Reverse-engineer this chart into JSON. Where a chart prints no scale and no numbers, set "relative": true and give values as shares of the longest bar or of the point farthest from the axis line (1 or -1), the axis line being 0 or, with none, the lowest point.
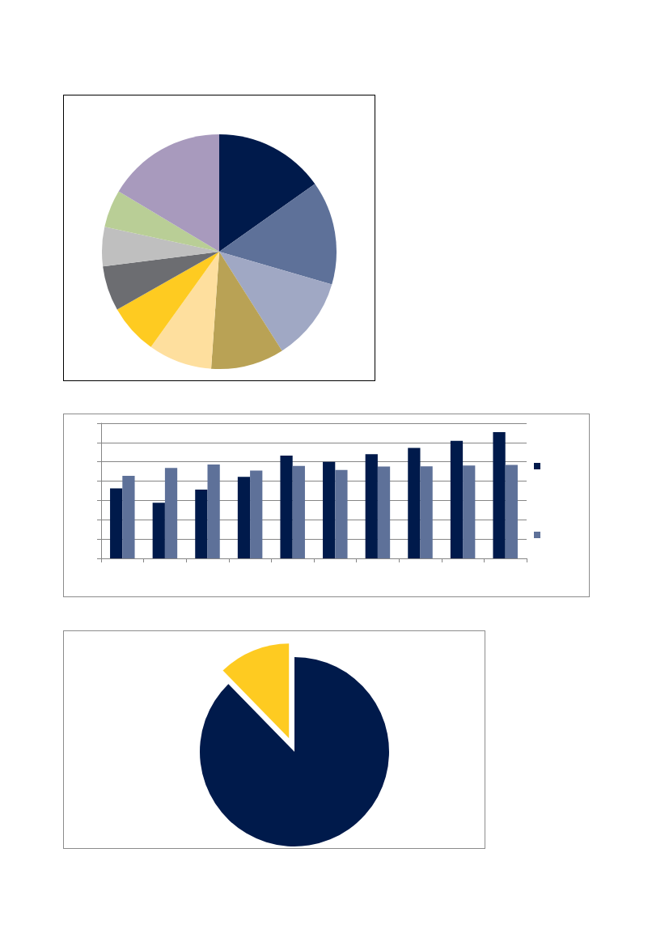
{
  "chart_data": [
    {
      "type": "pie",
      "categories": [
        null,
        null,
        null,
        null,
        null,
        null,
        null,
        null,
        null,
        null
      ],
      "values": [
        15.2,
        14.3,
        11.5,
        10.1,
        8.8,
        6.9,
        6.2,
        5.4,
        5.2,
        16.4
      ],
      "colors": [
        "#001a4b",
        "#5e7199",
        "#a0a8c4",
        "#b9a255",
        "#fedf9e",
        "#fecb21",
        "#6c6d71",
        "#bfbfbf",
        "#b9ce96",
        "#a89abd"
      ]
    },
    {
      "type": "bar",
      "relative": true,
      "grid": "y",
      "categories": [
        null,
        null,
        null,
        null,
        null,
        null,
        null,
        null,
        null,
        null
      ],
      "series": [
        {
          "color": "#001a4b",
          "values": [
            0.554,
            0.44,
            0.544,
            0.645,
            0.814,
            0.764,
            0.825,
            0.875,
            0.931,
            1
          ]
        },
        {
          "color": "#5e7199",
          "values": [
            0.653,
            0.716,
            0.743,
            0.695,
            0.732,
            0.7,
            0.727,
            0.729,
            0.735,
            0.74
          ]
        }
      ]
    },
    {
      "type": "pie",
      "categories": [
        null,
        null
      ],
      "values": [
        87.7,
        12.3
      ],
      "colors": [
        "#001a4b",
        "#fecb21"
      ]
    }
  ]
}
